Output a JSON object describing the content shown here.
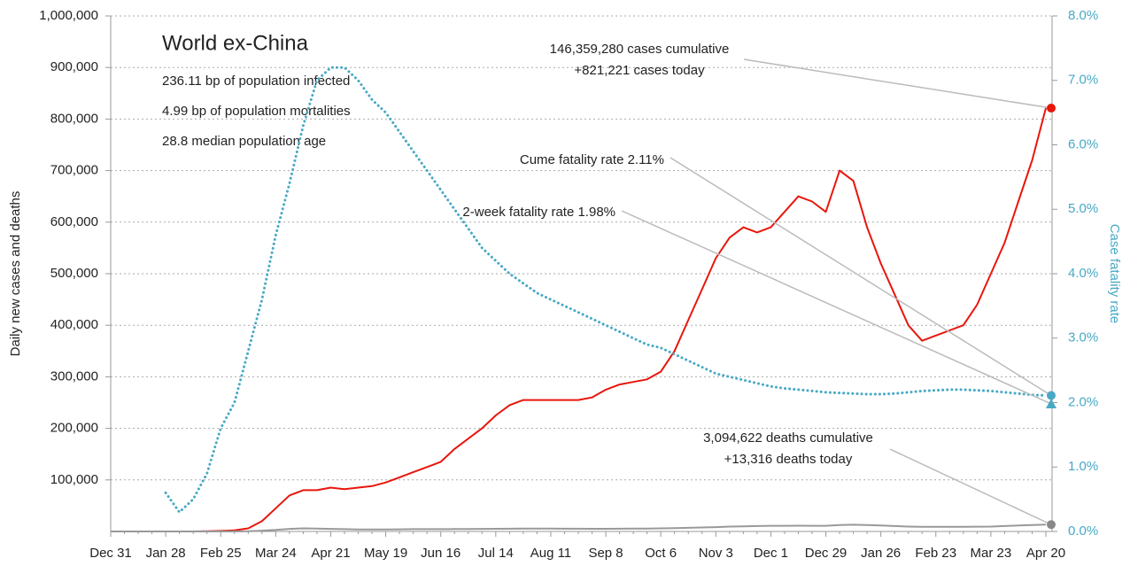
{
  "chart_data": {
    "type": "line",
    "title": "World ex-China",
    "info_lines": [
      "236.11 bp of population infected",
      "4.99 bp of population mortalities",
      "28.8 median population age"
    ],
    "ylabel": "Daily new cases and deaths",
    "y2label": "Case fatality rate",
    "categories": [
      "Dec 31",
      null,
      null,
      null,
      "Jan 28",
      null,
      null,
      null,
      "Feb 25",
      null,
      null,
      null,
      "Mar 24",
      null,
      null,
      null,
      "Apr 21",
      null,
      null,
      null,
      "May 19",
      null,
      null,
      null,
      "Jun 16",
      null,
      null,
      null,
      "Jul 14",
      null,
      null,
      null,
      "Aug 11",
      null,
      null,
      null,
      "Sep 8",
      null,
      null,
      null,
      "Oct 6",
      null,
      null,
      null,
      "Nov 3",
      null,
      null,
      null,
      "Dec 1",
      null,
      null,
      null,
      "Dec 29",
      null,
      null,
      null,
      "Jan 26",
      null,
      null,
      null,
      "Feb 23",
      null,
      null,
      null,
      "Mar 23",
      null,
      null,
      null,
      "Apr 20"
    ],
    "series": [
      {
        "name": "Daily new cases",
        "color": "#e8160c",
        "style": "solid",
        "axis": "y",
        "values": [
          0,
          0,
          0,
          0,
          0,
          0,
          0,
          500,
          1000,
          2000,
          6000,
          20000,
          45000,
          70000,
          80000,
          80000,
          85000,
          82000,
          85000,
          88000,
          95000,
          105000,
          115000,
          125000,
          135000,
          160000,
          180000,
          200000,
          225000,
          245000,
          255000,
          255000,
          255000,
          255000,
          255000,
          260000,
          275000,
          285000,
          290000,
          295000,
          310000,
          350000,
          410000,
          470000,
          530000,
          570000,
          590000,
          580000,
          590000,
          620000,
          650000,
          640000,
          620000,
          700000,
          680000,
          590000,
          520000,
          460000,
          400000,
          370000,
          380000,
          390000,
          400000,
          440000,
          500000,
          560000,
          640000,
          720000,
          821221
        ]
      },
      {
        "name": "Daily deaths",
        "color": "#999999",
        "style": "solid",
        "axis": "y",
        "values": [
          0,
          0,
          0,
          0,
          0,
          0,
          0,
          0,
          0,
          0,
          300,
          1500,
          3000,
          5000,
          6000,
          5500,
          5000,
          4500,
          4000,
          4000,
          4000,
          4200,
          4400,
          4500,
          4500,
          4600,
          4800,
          5000,
          5200,
          5400,
          5500,
          5500,
          5500,
          5400,
          5300,
          5200,
          5200,
          5300,
          5500,
          5700,
          6000,
          6500,
          7000,
          7800,
          8500,
          9500,
          10000,
          10500,
          11000,
          11000,
          11200,
          11000,
          11000,
          12500,
          13000,
          12500,
          11500,
          10500,
          9500,
          9000,
          9000,
          9000,
          9000,
          9200,
          9500,
          10500,
          11500,
          12500,
          13316
        ]
      },
      {
        "name": "Case fatality rate",
        "color": "#48a9c5",
        "style": "dotted",
        "axis": "y2",
        "values": [
          null,
          null,
          null,
          null,
          0.6,
          0.3,
          0.5,
          0.9,
          1.6,
          2.0,
          2.8,
          3.6,
          4.6,
          5.4,
          6.3,
          7.0,
          7.2,
          7.2,
          7.0,
          6.7,
          6.5,
          6.2,
          5.9,
          5.6,
          5.3,
          5.0,
          4.7,
          4.4,
          4.2,
          4.0,
          3.85,
          3.7,
          3.6,
          3.5,
          3.4,
          3.3,
          3.2,
          3.1,
          3.0,
          2.9,
          2.85,
          2.75,
          2.65,
          2.55,
          2.45,
          2.4,
          2.35,
          2.3,
          2.25,
          2.22,
          2.2,
          2.18,
          2.16,
          2.15,
          2.14,
          2.13,
          2.13,
          2.14,
          2.16,
          2.18,
          2.19,
          2.2,
          2.2,
          2.19,
          2.18,
          2.16,
          2.14,
          2.12,
          2.11
        ]
      }
    ],
    "ylim": [
      0,
      1000000
    ],
    "yticks": [
      {
        "value": 100000,
        "label": "100,000"
      },
      {
        "value": 200000,
        "label": "200,000"
      },
      {
        "value": 300000,
        "label": "300,000"
      },
      {
        "value": 400000,
        "label": "400,000"
      },
      {
        "value": 500000,
        "label": "500,000"
      },
      {
        "value": 600000,
        "label": "600,000"
      },
      {
        "value": 700000,
        "label": "700,000"
      },
      {
        "value": 800000,
        "label": "800,000"
      },
      {
        "value": 900000,
        "label": "900,000"
      },
      {
        "value": 1000000,
        "label": "1,000,000"
      }
    ],
    "y2lim": [
      0,
      8
    ],
    "y2ticks": [
      {
        "value": 0,
        "label": "0.0%"
      },
      {
        "value": 1,
        "label": "1.0%"
      },
      {
        "value": 2,
        "label": "2.0%"
      },
      {
        "value": 3,
        "label": "3.0%"
      },
      {
        "value": 4,
        "label": "4.0%"
      },
      {
        "value": 5,
        "label": "5.0%"
      },
      {
        "value": 6,
        "label": "6.0%"
      },
      {
        "value": 7,
        "label": "7.0%"
      },
      {
        "value": 8,
        "label": "8.0%"
      }
    ],
    "grid": true,
    "annotations": [
      {
        "text": [
          "146,359,280 cases cumulative",
          "+821,221 cases today"
        ],
        "value": 821221,
        "axis": "y",
        "marker": "circle",
        "color": "#e8160c"
      },
      {
        "text": [
          "Cume fatality rate 2.11%"
        ],
        "value": 2.11,
        "axis": "y2",
        "marker": "circle",
        "color": "#48a9c5"
      },
      {
        "text": [
          "2-week fatality rate 1.98%"
        ],
        "value": 1.98,
        "axis": "y2",
        "marker": "triangle",
        "color": "#48a9c5"
      },
      {
        "text": [
          "3,094,622 deaths cumulative",
          "+13,316 deaths today"
        ],
        "value": 13316,
        "axis": "y",
        "marker": "circle",
        "color": "#888888"
      }
    ]
  }
}
